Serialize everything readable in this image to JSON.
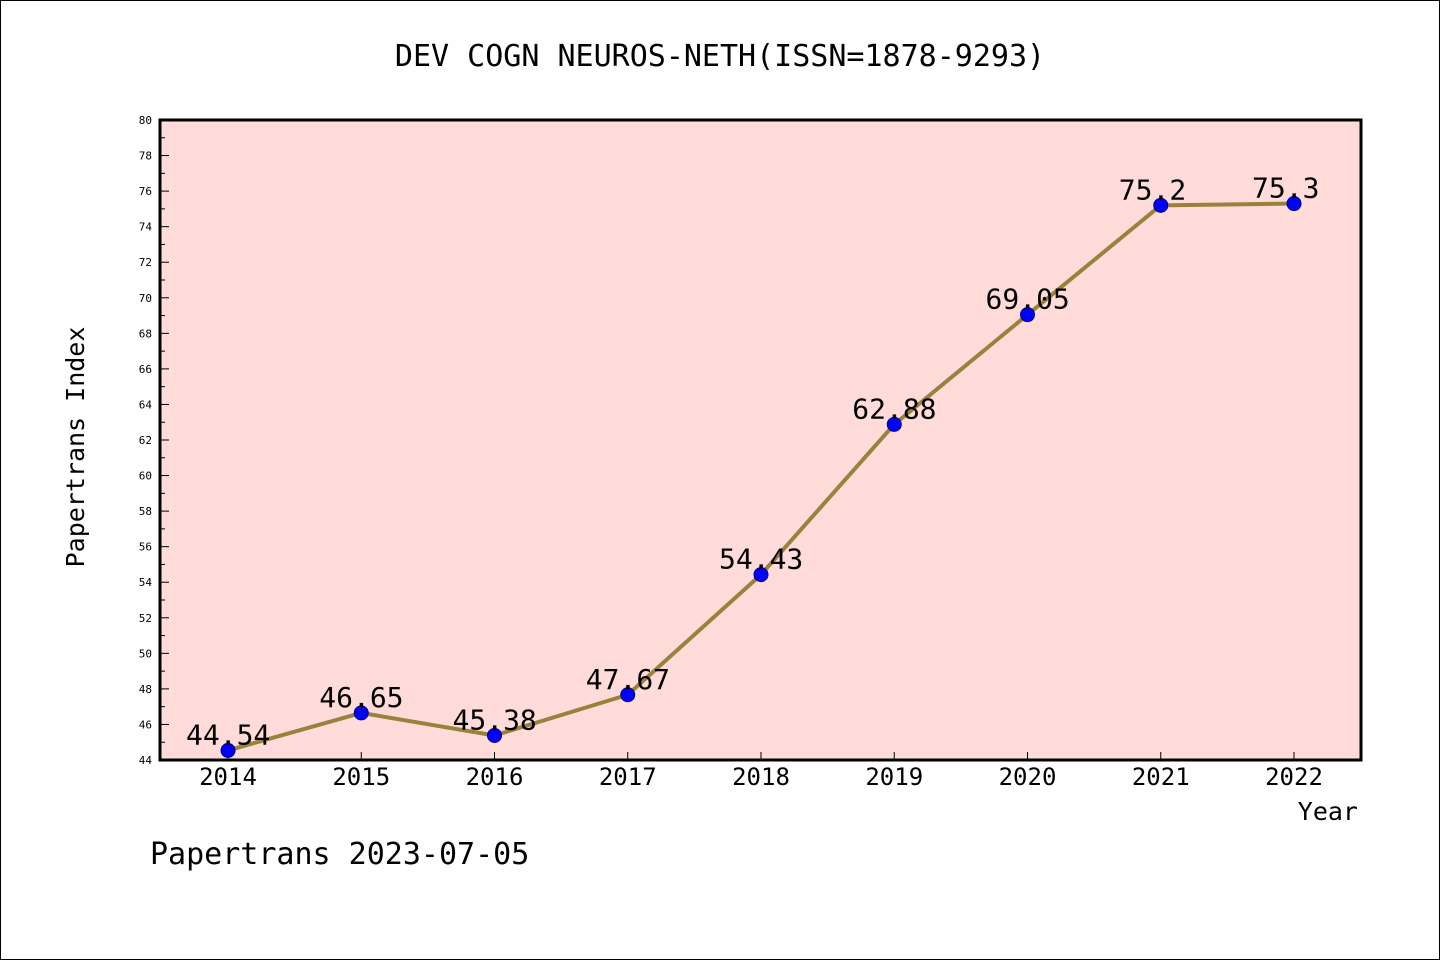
{
  "chart_data": {
    "type": "line",
    "title": "DEV COGN NEUROS-NETH(ISSN=1878-9293)",
    "xlabel": "Year",
    "ylabel": "Papertrans Index",
    "x": [
      "2014",
      "2015",
      "2016",
      "2017",
      "2018",
      "2019",
      "2020",
      "2021",
      "2022"
    ],
    "values": [
      44.54,
      46.65,
      45.38,
      47.67,
      54.43,
      62.88,
      69.05,
      75.2,
      75.3
    ],
    "data_labels": [
      "44.54",
      "46.65",
      "45.38",
      "47.67",
      "54.43",
      "62.88",
      "69.05",
      "75.2",
      "75.3"
    ],
    "ylim": [
      44,
      80
    ],
    "y_major_step": 2,
    "y_ticks": [
      "44",
      "46",
      "48",
      "50",
      "52",
      "54",
      "56",
      "58",
      "60",
      "62",
      "64",
      "66",
      "68",
      "70",
      "72",
      "74",
      "76",
      "78",
      "80"
    ],
    "grid": false,
    "legend": "none",
    "colors": {
      "plot_background": "#FFDCDA",
      "line": "#9B823C",
      "marker": "#0000FF",
      "marker_edge": "#000080",
      "frame": "#000000"
    }
  },
  "footer": {
    "text": "Papertrans 2023-07-05"
  }
}
